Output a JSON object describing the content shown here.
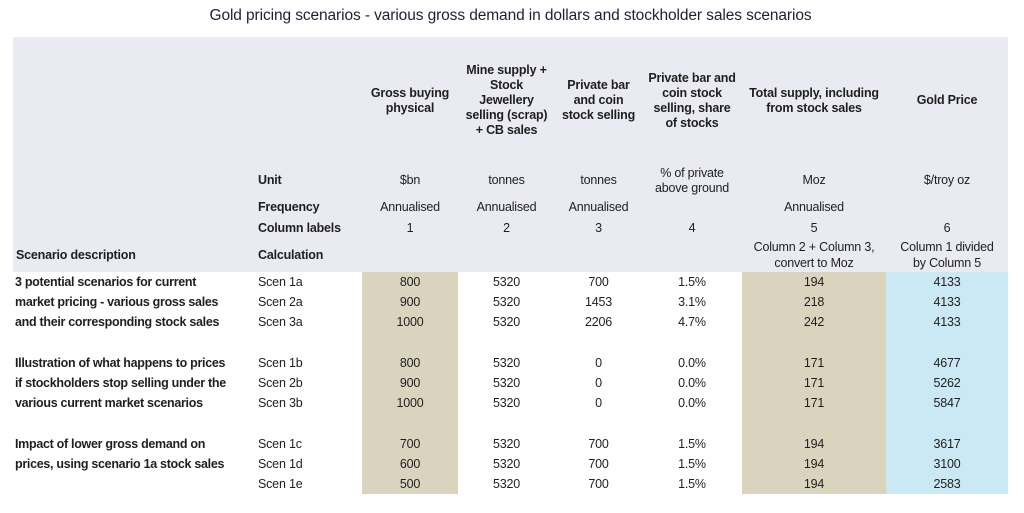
{
  "title": "Gold pricing scenarios - various gross demand in dollars and stockholder sales scenarios",
  "colors": {
    "header_bg": "#eaebf2",
    "tan_highlight": "#dad4bf",
    "blue_highlight": "#cbe9f5",
    "title_ink": "#1b2233",
    "text_ink": "#1f1f1f"
  },
  "table": {
    "row_labels": {
      "unit": "Unit",
      "frequency": "Frequency",
      "column_labels": "Column labels",
      "calculation": "Calculation",
      "scenario_description": "Scenario description"
    },
    "columns": [
      {
        "header": "Gross buying\nphysical",
        "unit": "$bn",
        "frequency": "Annualised",
        "label": "1",
        "calculation": "",
        "highlight": "tan"
      },
      {
        "header": "Mine supply +\nStock\nJewellery\nselling (scrap)\n+ CB sales",
        "unit": "tonnes",
        "frequency": "Annualised",
        "label": "2",
        "calculation": "",
        "highlight": "none"
      },
      {
        "header": "Private bar\nand coin\nstock selling",
        "unit": "tonnes",
        "frequency": "Annualised",
        "label": "3",
        "calculation": "",
        "highlight": "none"
      },
      {
        "header": "Private bar and\ncoin stock\nselling, share\nof stocks",
        "unit": "% of private\nabove ground",
        "frequency": "",
        "label": "4",
        "calculation": "",
        "highlight": "none"
      },
      {
        "header": "Total supply, including\nfrom stock sales",
        "unit": "Moz",
        "frequency": "Annualised",
        "label": "5",
        "calculation": "Column 2 + Column 3,\nconvert to Moz",
        "highlight": "tan"
      },
      {
        "header": "Gold Price",
        "unit": "$/troy oz",
        "frequency": "",
        "label": "6",
        "calculation": "Column 1 divided\nby Column 5",
        "highlight": "blue"
      }
    ],
    "rows": [
      {
        "desc": "3 potential scenarios for current",
        "scen": "Scen 1a",
        "values": [
          "800",
          "5320",
          "700",
          "1.5%",
          "194",
          "4133"
        ]
      },
      {
        "desc": "market pricing - various gross sales",
        "scen": "Scen 2a",
        "values": [
          "900",
          "5320",
          "1453",
          "3.1%",
          "218",
          "4133"
        ]
      },
      {
        "desc": "and their corresponding stock sales",
        "scen": "Scen 3a",
        "values": [
          "1000",
          "5320",
          "2206",
          "4.7%",
          "242",
          "4133"
        ]
      },
      {
        "desc": "",
        "scen": "",
        "values": [
          "",
          "",
          "",
          "",
          "",
          ""
        ]
      },
      {
        "desc": "Illustration of what happens to prices",
        "scen": "Scen 1b",
        "values": [
          "800",
          "5320",
          "0",
          "0.0%",
          "171",
          "4677"
        ]
      },
      {
        "desc": "if stockholders stop selling under the",
        "scen": "Scen 2b",
        "values": [
          "900",
          "5320",
          "0",
          "0.0%",
          "171",
          "5262"
        ]
      },
      {
        "desc": "various current market scenarios",
        "scen": "Scen 3b",
        "values": [
          "1000",
          "5320",
          "0",
          "0.0%",
          "171",
          "5847"
        ]
      },
      {
        "desc": "",
        "scen": "",
        "values": [
          "",
          "",
          "",
          "",
          "",
          ""
        ]
      },
      {
        "desc": "Impact of lower gross demand on",
        "scen": "Scen 1c",
        "values": [
          "700",
          "5320",
          "700",
          "1.5%",
          "194",
          "3617"
        ]
      },
      {
        "desc": "prices, using scenario 1a stock sales",
        "scen": "Scen 1d",
        "values": [
          "600",
          "5320",
          "700",
          "1.5%",
          "194",
          "3100"
        ]
      },
      {
        "desc": "",
        "scen": "Scen 1e",
        "values": [
          "500",
          "5320",
          "700",
          "1.5%",
          "194",
          "2583"
        ]
      }
    ]
  }
}
